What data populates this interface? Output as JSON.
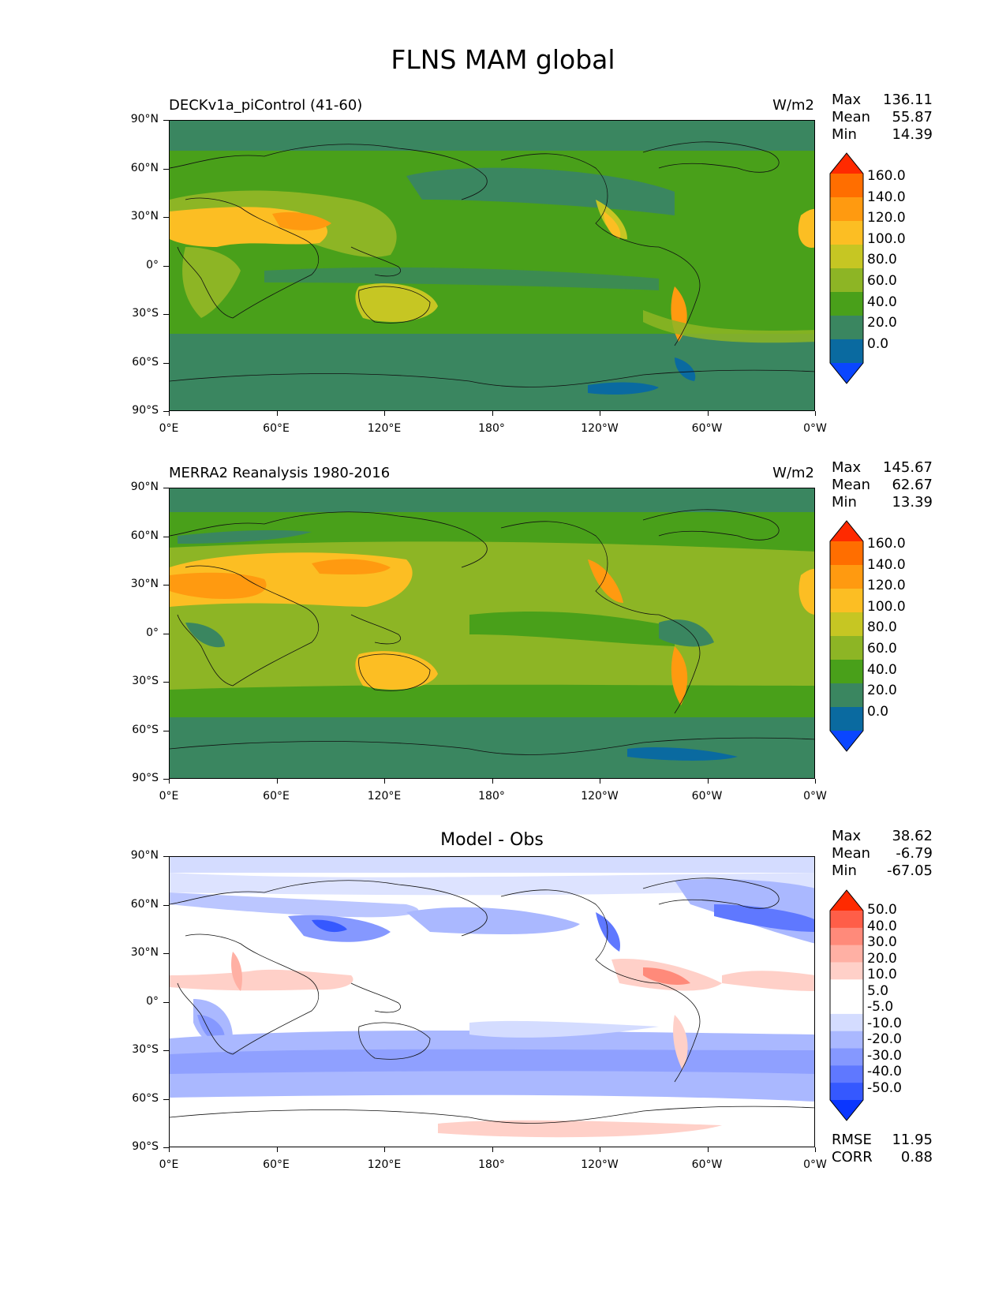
{
  "figure": {
    "title": "FLNS MAM global"
  },
  "axes": {
    "lat_labels": [
      "90°N",
      "60°N",
      "30°N",
      "0°",
      "30°S",
      "60°S",
      "90°S"
    ],
    "lon_labels": [
      "0°E",
      "60°E",
      "120°E",
      "180°",
      "120°W",
      "60°W",
      "0°W"
    ]
  },
  "panels": [
    {
      "title_left": "DECKv1a_piControl (41-60)",
      "units": "W/m2",
      "stats": {
        "max_label": "Max",
        "max": "136.11",
        "mean_label": "Mean",
        "mean": "55.87",
        "min_label": "Min",
        "min": "14.39"
      },
      "colorbar_labels": [
        "160.0",
        "140.0",
        "120.0",
        "100.0",
        "80.0",
        "60.0",
        "40.0",
        "20.0",
        "0.0"
      ],
      "colorbar_colors": [
        "#ff2a00",
        "#ff6e00",
        "#ff9a10",
        "#fcbe23",
        "#c6c623",
        "#8db525",
        "#49a01a",
        "#3a8660",
        "#0a6aa0",
        "#0a46ff"
      ]
    },
    {
      "title_left": "MERRA2 Reanalysis 1980-2016",
      "units": "W/m2",
      "stats": {
        "max_label": "Max",
        "max": "145.67",
        "mean_label": "Mean",
        "mean": "62.67",
        "min_label": "Min",
        "min": "13.39"
      },
      "colorbar_labels": [
        "160.0",
        "140.0",
        "120.0",
        "100.0",
        "80.0",
        "60.0",
        "40.0",
        "20.0",
        "0.0"
      ],
      "colorbar_colors": [
        "#ff2a00",
        "#ff6e00",
        "#ff9a10",
        "#fcbe23",
        "#c6c623",
        "#8db525",
        "#49a01a",
        "#3a8660",
        "#0a6aa0",
        "#0a46ff"
      ]
    },
    {
      "title_center": "Model - Obs",
      "stats": {
        "max_label": "Max",
        "max": "38.62",
        "mean_label": "Mean",
        "mean": "-6.79",
        "min_label": "Min",
        "min": "-67.05"
      },
      "colorbar_labels": [
        "50.0",
        "40.0",
        "30.0",
        "20.0",
        "10.0",
        "5.0",
        "-5.0",
        "-10.0",
        "-20.0",
        "-30.0",
        "-40.0",
        "-50.0"
      ],
      "colorbar_colors": [
        "#ff2a00",
        "#ff5e48",
        "#ff8a7a",
        "#ffb0a4",
        "#ffd0c8",
        "#ffffff",
        "#ffffff",
        "#d4dcff",
        "#aab8ff",
        "#8598ff",
        "#5f78ff",
        "#3558ff",
        "#0a36ff"
      ],
      "metrics": {
        "rmse_label": "RMSE",
        "rmse": "11.95",
        "corr_label": "CORR",
        "corr": "0.88"
      }
    }
  ]
}
